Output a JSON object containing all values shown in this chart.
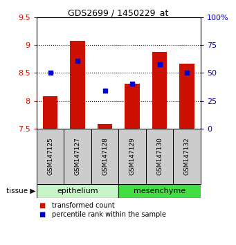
{
  "title": "GDS2699 / 1450229_at",
  "samples": [
    "GSM147125",
    "GSM147127",
    "GSM147128",
    "GSM147129",
    "GSM147130",
    "GSM147132"
  ],
  "red_values": [
    8.08,
    9.07,
    7.58,
    8.3,
    8.88,
    8.67
  ],
  "blue_values": [
    8.5,
    8.72,
    8.18,
    8.3,
    8.65,
    8.5
  ],
  "baseline": 7.5,
  "ylim_left": [
    7.5,
    9.5
  ],
  "ylim_right": [
    0,
    100
  ],
  "yticks_left": [
    7.5,
    8.0,
    8.5,
    9.0,
    9.5
  ],
  "ytick_labels_left": [
    "7.5",
    "8",
    "8.5",
    "9",
    "9.5"
  ],
  "yticks_right": [
    0,
    25,
    50,
    75,
    100
  ],
  "ytick_labels_right": [
    "0",
    "25",
    "50",
    "75",
    "100%"
  ],
  "bar_color": "#cc1100",
  "marker_color": "#0000cc",
  "epi_color": "#c8f5c8",
  "mes_color": "#44dd44",
  "sample_box_color": "#cccccc",
  "tissue_groups": [
    {
      "label": "epithelium",
      "indices": [
        0,
        1,
        2
      ]
    },
    {
      "label": "mesenchyme",
      "indices": [
        3,
        4,
        5
      ]
    }
  ],
  "legend_items": [
    {
      "label": "transformed count",
      "color": "#cc1100"
    },
    {
      "label": "percentile rank within the sample",
      "color": "#0000cc"
    }
  ],
  "bar_width": 0.55,
  "grid_yticks": [
    8.0,
    8.5,
    9.0
  ],
  "title_fontsize": 9
}
